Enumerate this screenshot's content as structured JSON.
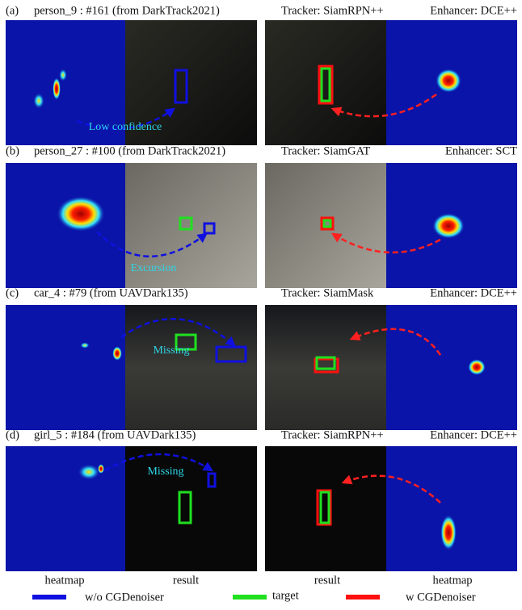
{
  "rows": [
    {
      "label": "(a)",
      "title": "person_9 : #161 (from DarkTrack2021)",
      "tracker": "Tracker: SiamRPN++",
      "enhancer": "Enhancer: DCE++",
      "annotation": "Low confidence"
    },
    {
      "label": "(b)",
      "title": "person_27 : #100 (from DarkTrack2021)",
      "tracker": "Tracker: SiamGAT",
      "enhancer": "Enhancer: SCT",
      "annotation": "Excursion"
    },
    {
      "label": "(c)",
      "title": "car_4 : #79 (from UAVDark135)",
      "tracker": "Tracker: SiamMask",
      "enhancer": "Enhancer: DCE++",
      "annotation": "Missing"
    },
    {
      "label": "(d)",
      "title": "girl_5 : #184 (from UAVDark135)",
      "tracker": "Tracker: SiamRPN++",
      "enhancer": "Enhancer: DCE++",
      "annotation": "Missing"
    }
  ],
  "legend": {
    "heatmap_left": "heatmap",
    "result_left": "result",
    "result_right": "result",
    "heatmap_right": "heatmap",
    "without": "w/o  CGDenoiser",
    "target": "target",
    "with": "w  CGDenoiser"
  }
}
